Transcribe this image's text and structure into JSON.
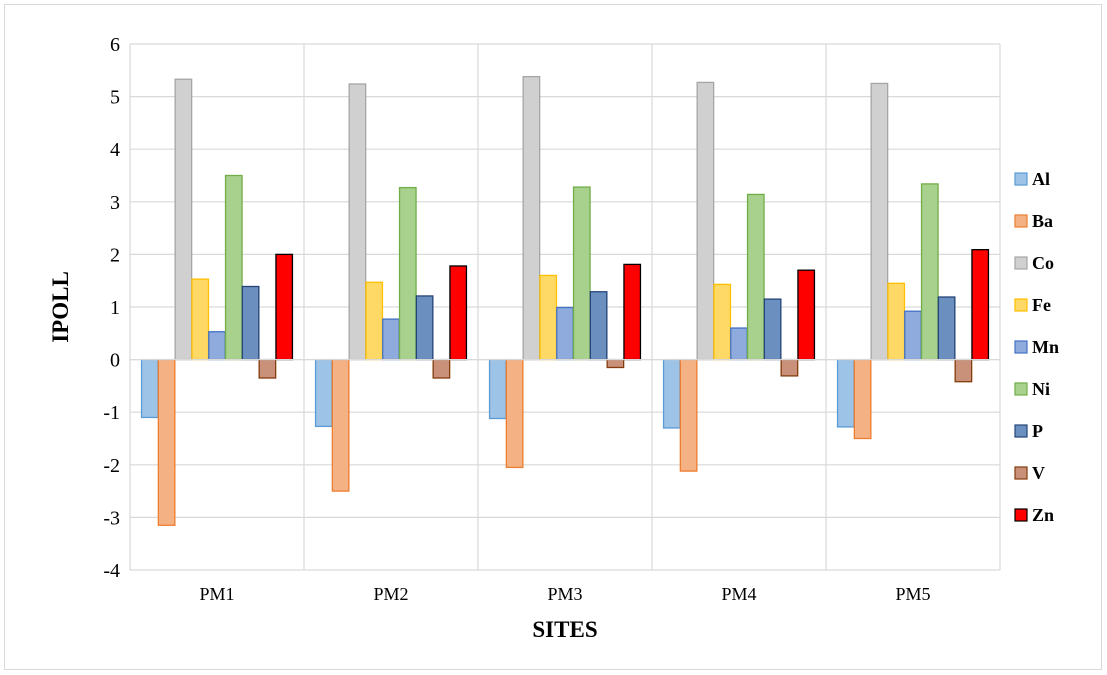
{
  "chart_data": {
    "type": "bar",
    "xlabel": "SITES",
    "ylabel": "IPOLL",
    "ylim": [
      -4,
      6
    ],
    "yticks": [
      "6",
      "5",
      "4",
      "3",
      "2",
      "1",
      "0",
      "-1",
      "-2",
      "-3",
      "-4"
    ],
    "grid": true,
    "legend_position": "right",
    "categories": [
      "PM1",
      "PM2",
      "PM3",
      "PM4",
      "PM5"
    ],
    "series": [
      {
        "name": "Al",
        "fill": "#9dc3e6",
        "stroke": "#5b9bd5",
        "values": [
          -1.1,
          -1.27,
          -1.12,
          -1.3,
          -1.28
        ]
      },
      {
        "name": "Ba",
        "fill": "#f4b183",
        "stroke": "#ed7d31",
        "values": [
          -3.15,
          -2.5,
          -2.05,
          -2.12,
          -1.5
        ]
      },
      {
        "name": "Co",
        "fill": "#d0d0d0",
        "stroke": "#a5a5a5",
        "values": [
          5.33,
          5.24,
          5.38,
          5.27,
          5.25
        ]
      },
      {
        "name": "Fe",
        "fill": "#ffd966",
        "stroke": "#ffc000",
        "values": [
          1.53,
          1.47,
          1.6,
          1.43,
          1.45
        ]
      },
      {
        "name": "Mn",
        "fill": "#8faadc",
        "stroke": "#4472c4",
        "values": [
          0.53,
          0.77,
          0.99,
          0.6,
          0.92
        ]
      },
      {
        "name": "Ni",
        "fill": "#a9d18e",
        "stroke": "#70ad47",
        "values": [
          3.5,
          3.27,
          3.28,
          3.14,
          3.34
        ]
      },
      {
        "name": "P",
        "fill": "#6b8fbf",
        "stroke": "#264478",
        "values": [
          1.39,
          1.21,
          1.29,
          1.15,
          1.19
        ]
      },
      {
        "name": "V",
        "fill": "#c9907a",
        "stroke": "#843c0c",
        "values": [
          -0.35,
          -0.35,
          -0.15,
          -0.31,
          -0.42
        ]
      },
      {
        "name": "Zn",
        "fill": "#ff0000",
        "stroke": "#000000",
        "values": [
          2.0,
          1.78,
          1.81,
          1.7,
          2.09
        ]
      }
    ]
  }
}
